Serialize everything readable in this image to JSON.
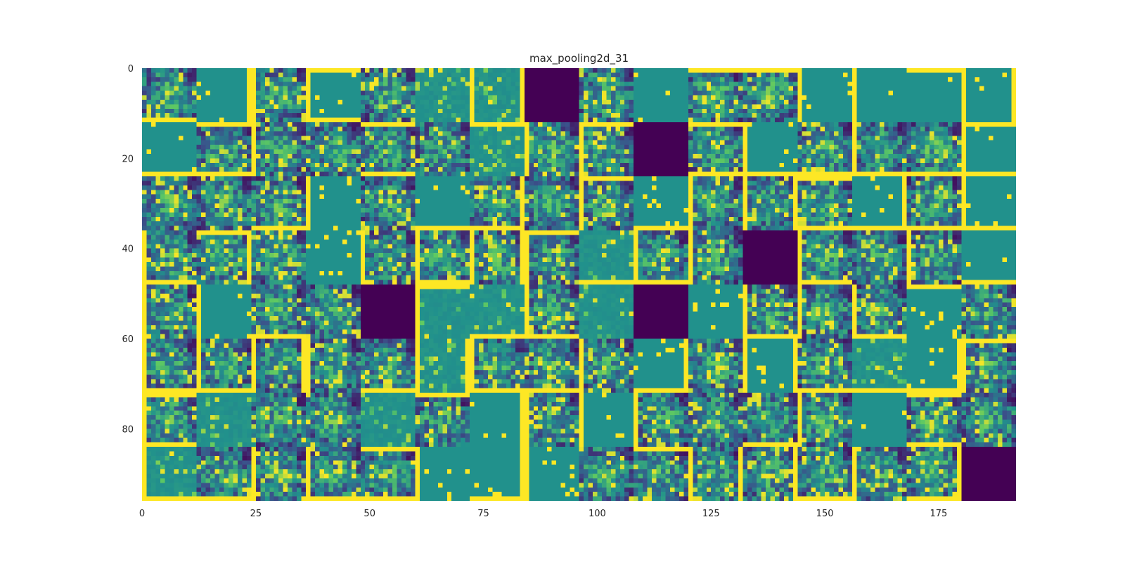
{
  "chart_data": {
    "type": "heatmap",
    "title": "max_pooling2d_31",
    "xlabel": "",
    "ylabel": "",
    "colormap": "viridis",
    "colormap_stops": [
      "#440154",
      "#3b528b",
      "#21918c",
      "#5ec962",
      "#fde725"
    ],
    "xlim": [
      0,
      192
    ],
    "ylim": [
      96,
      0
    ],
    "grid": false,
    "xticks": [
      0,
      25,
      50,
      75,
      100,
      125,
      150,
      175
    ],
    "xtick_labels": [
      "0",
      "25",
      "50",
      "75",
      "100",
      "125",
      "150",
      "175"
    ],
    "yticks": [
      0,
      20,
      40,
      60,
      80
    ],
    "ytick_labels": [
      "0",
      "20",
      "40",
      "60",
      "80"
    ],
    "tile_grid": {
      "rows": 8,
      "cols": 16,
      "tile_size": 12,
      "description_of_tiles": "feature maps",
      "tile_kinds": [
        [
          "P",
          "F",
          "P",
          "F",
          "P",
          "S",
          "S",
          "D",
          "P",
          "F",
          "P",
          "P",
          "F",
          "F",
          "F",
          "F"
        ],
        [
          "F",
          "P",
          "P",
          "P",
          "P",
          "P",
          "S",
          "P",
          "P",
          "D",
          "P",
          "F",
          "P",
          "P",
          "P",
          "F"
        ],
        [
          "P",
          "P",
          "P",
          "F",
          "P",
          "F",
          "P",
          "P",
          "P",
          "F",
          "P",
          "P",
          "P",
          "F",
          "P",
          "F"
        ],
        [
          "P",
          "P",
          "P",
          "F",
          "P",
          "P",
          "P",
          "P",
          "S",
          "P",
          "P",
          "D",
          "P",
          "P",
          "P",
          "F"
        ],
        [
          "P",
          "F",
          "P",
          "P",
          "D",
          "S",
          "S",
          "P",
          "S",
          "D",
          "F",
          "P",
          "P",
          "P",
          "F",
          "P"
        ],
        [
          "P",
          "P",
          "P",
          "P",
          "P",
          "S",
          "P",
          "P",
          "P",
          "F",
          "P",
          "F",
          "P",
          "S",
          "F",
          "P"
        ],
        [
          "P",
          "S",
          "P",
          "P",
          "S",
          "P",
          "F",
          "P",
          "F",
          "P",
          "P",
          "P",
          "P",
          "F",
          "P",
          "P"
        ],
        [
          "S",
          "P",
          "P",
          "P",
          "P",
          "F",
          "F",
          "F",
          "P",
          "P",
          "P",
          "P",
          "P",
          "P",
          "P",
          "D"
        ]
      ]
    }
  }
}
